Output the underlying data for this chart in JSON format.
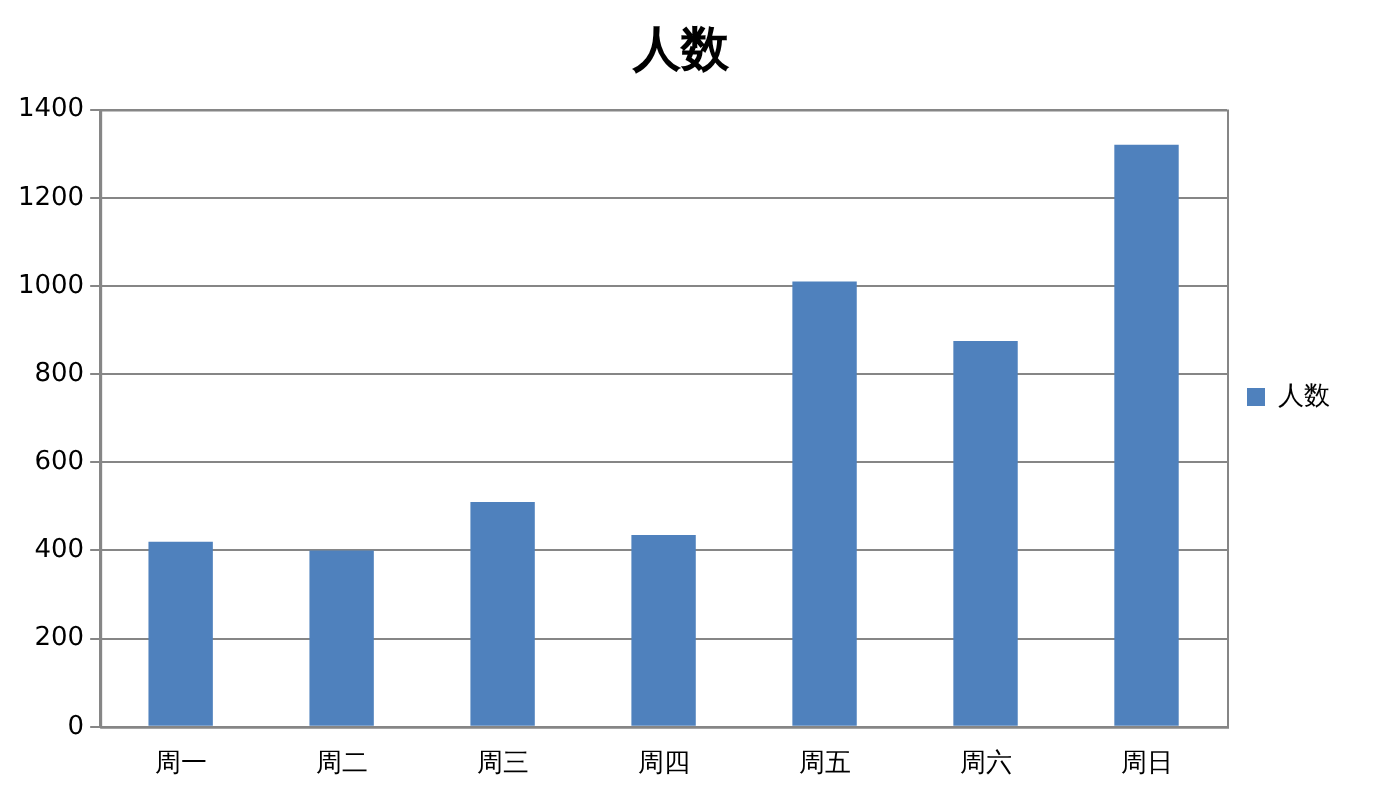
{
  "chart_data": {
    "type": "bar",
    "title": "人数",
    "categories": [
      "周一",
      "周二",
      "周三",
      "周四",
      "周五",
      "周六",
      "周日"
    ],
    "series": [
      {
        "name": "人数",
        "color": "#4f81bd",
        "values": [
          420,
          400,
          510,
          435,
          1010,
          875,
          1320
        ]
      }
    ],
    "ylim": [
      0,
      1400
    ],
    "yticks": [
      0,
      200,
      400,
      600,
      800,
      1000,
      1200,
      1400
    ],
    "grid": "y",
    "legend": "right"
  }
}
